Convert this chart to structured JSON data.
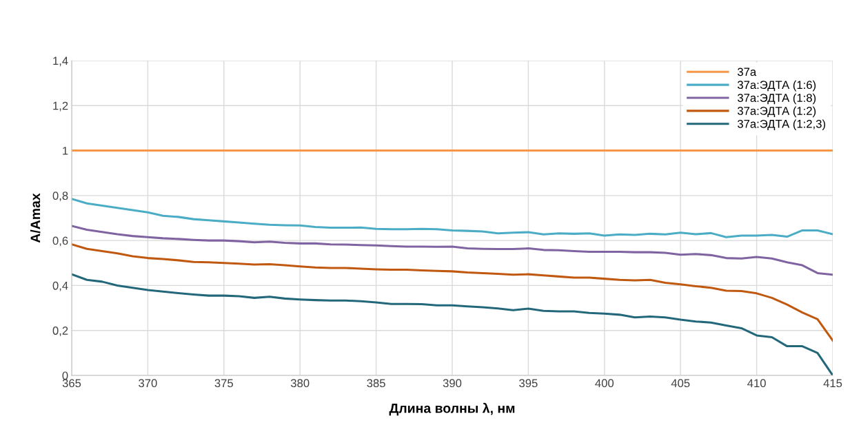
{
  "chart_data": {
    "type": "line",
    "xlabel": "Длина волны λ, нм",
    "ylabel": "A/Amax",
    "xlim": [
      365,
      415
    ],
    "xticks": [
      365,
      370,
      375,
      380,
      385,
      390,
      395,
      400,
      405,
      410,
      415
    ],
    "ylim": [
      0,
      1.4
    ],
    "yticks": [
      0,
      {
        "value": 0.2,
        "label": "0,2"
      },
      {
        "value": 0.4,
        "label": "0,4"
      },
      {
        "value": 0.6,
        "label": "0,6"
      },
      {
        "value": 0.8,
        "label": "0,8"
      },
      1,
      {
        "value": 1.2,
        "label": "1,2"
      },
      {
        "value": 1.4,
        "label": "1,4"
      }
    ],
    "grid": true,
    "legend": "top right",
    "marker": "none",
    "line_style": "solid",
    "x": [
      365,
      366,
      367,
      368,
      369,
      370,
      371,
      372,
      373,
      374,
      375,
      376,
      377,
      378,
      379,
      380,
      381,
      382,
      383,
      384,
      385,
      386,
      387,
      388,
      389,
      390,
      391,
      392,
      393,
      394,
      395,
      396,
      397,
      398,
      399,
      400,
      401,
      402,
      403,
      404,
      405,
      406,
      407,
      408,
      409,
      410,
      411,
      412,
      413,
      414,
      415
    ],
    "series": [
      {
        "name": "37a",
        "color": "#f79646",
        "x": [
          365,
          415
        ],
        "values": [
          1,
          1
        ]
      },
      {
        "name": "37a:ЭДТА (1:6)",
        "color": "#4bacc6",
        "values": [
          0.785,
          0.765,
          0.755,
          0.745,
          0.735,
          0.725,
          0.71,
          0.705,
          0.695,
          0.69,
          0.685,
          0.68,
          0.675,
          0.67,
          0.668,
          0.667,
          0.66,
          0.657,
          0.657,
          0.658,
          0.652,
          0.65,
          0.65,
          0.652,
          0.65,
          0.645,
          0.643,
          0.64,
          0.632,
          0.635,
          0.637,
          0.627,
          0.632,
          0.63,
          0.632,
          0.622,
          0.627,
          0.625,
          0.63,
          0.627,
          0.635,
          0.628,
          0.633,
          0.615,
          0.622,
          0.622,
          0.625,
          0.617,
          0.645,
          0.645,
          0.628
        ]
      },
      {
        "name": "37a:ЭДТА (1:8)",
        "color": "#8064a2",
        "values": [
          0.665,
          0.648,
          0.638,
          0.628,
          0.62,
          0.615,
          0.61,
          0.607,
          0.603,
          0.6,
          0.6,
          0.597,
          0.592,
          0.595,
          0.59,
          0.587,
          0.587,
          0.583,
          0.582,
          0.58,
          0.578,
          0.575,
          0.573,
          0.573,
          0.572,
          0.573,
          0.565,
          0.563,
          0.562,
          0.562,
          0.565,
          0.558,
          0.557,
          0.553,
          0.55,
          0.55,
          0.55,
          0.548,
          0.548,
          0.545,
          0.537,
          0.54,
          0.535,
          0.522,
          0.52,
          0.527,
          0.52,
          0.503,
          0.49,
          0.455,
          0.448
        ]
      },
      {
        "name": "37a:ЭДТА (1:2)",
        "color": "#c0580f",
        "values": [
          0.583,
          0.563,
          0.553,
          0.543,
          0.53,
          0.522,
          0.518,
          0.512,
          0.505,
          0.503,
          0.5,
          0.497,
          0.493,
          0.495,
          0.49,
          0.485,
          0.48,
          0.478,
          0.478,
          0.475,
          0.472,
          0.47,
          0.47,
          0.467,
          0.465,
          0.463,
          0.458,
          0.455,
          0.452,
          0.448,
          0.45,
          0.445,
          0.44,
          0.435,
          0.435,
          0.43,
          0.425,
          0.423,
          0.425,
          0.412,
          0.405,
          0.397,
          0.39,
          0.377,
          0.375,
          0.365,
          0.345,
          0.315,
          0.28,
          0.25,
          0.155
        ]
      },
      {
        "name": "37a:ЭДТА (1:2,3)",
        "color": "#23687a",
        "values": [
          0.45,
          0.425,
          0.417,
          0.4,
          0.39,
          0.38,
          0.373,
          0.366,
          0.36,
          0.355,
          0.355,
          0.352,
          0.345,
          0.35,
          0.342,
          0.338,
          0.335,
          0.333,
          0.333,
          0.33,
          0.325,
          0.318,
          0.318,
          0.317,
          0.312,
          0.312,
          0.307,
          0.303,
          0.298,
          0.29,
          0.297,
          0.287,
          0.285,
          0.285,
          0.278,
          0.275,
          0.27,
          0.258,
          0.262,
          0.258,
          0.248,
          0.24,
          0.235,
          0.222,
          0.21,
          0.178,
          0.17,
          0.13,
          0.13,
          0.1,
          0.0
        ]
      }
    ]
  }
}
